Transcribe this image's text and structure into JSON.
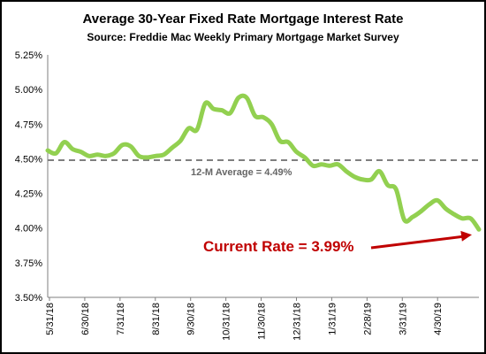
{
  "chart_data": {
    "type": "line",
    "title": "Average 30-Year Fixed Rate Mortgage Interest Rate",
    "subtitle": "Source: Freddie Mac Weekly Primary Mortgage Market Survey",
    "xlabel": "",
    "ylabel": "",
    "ylim": [
      3.5,
      5.25
    ],
    "yticks": [
      "3.50%",
      "3.75%",
      "4.00%",
      "4.25%",
      "4.50%",
      "4.75%",
      "5.00%",
      "5.25%"
    ],
    "xticks": [
      "5/31/18",
      "6/30/18",
      "7/31/18",
      "8/31/18",
      "9/30/18",
      "10/31/18",
      "11/30/18",
      "12/31/18",
      "1/31/19",
      "2/28/19",
      "3/31/19",
      "4/30/19"
    ],
    "grid": false,
    "colors": {
      "series": "#92d050",
      "average": "#7f7f7f",
      "callout": "#c00000"
    },
    "series": [
      {
        "values": [
          4.56,
          4.54,
          4.62,
          4.57,
          4.55,
          4.52,
          4.53,
          4.52,
          4.54,
          4.6,
          4.59,
          4.52,
          4.51,
          4.52,
          4.53,
          4.58,
          4.63,
          4.72,
          4.71,
          4.9,
          4.86,
          4.85,
          4.83,
          4.94,
          4.94,
          4.81,
          4.8,
          4.75,
          4.63,
          4.62,
          4.55,
          4.51,
          4.45,
          4.46,
          4.45,
          4.46,
          4.41,
          4.37,
          4.35,
          4.35,
          4.41,
          4.31,
          4.28,
          4.06,
          4.08,
          4.12,
          4.17,
          4.2,
          4.14,
          4.1,
          4.07,
          4.07,
          3.99
        ]
      }
    ],
    "average": {
      "value": 4.49,
      "label": "12-M Average = 4.49%"
    },
    "callout": {
      "label": "Current Rate = 3.99%",
      "value": 3.99
    }
  }
}
